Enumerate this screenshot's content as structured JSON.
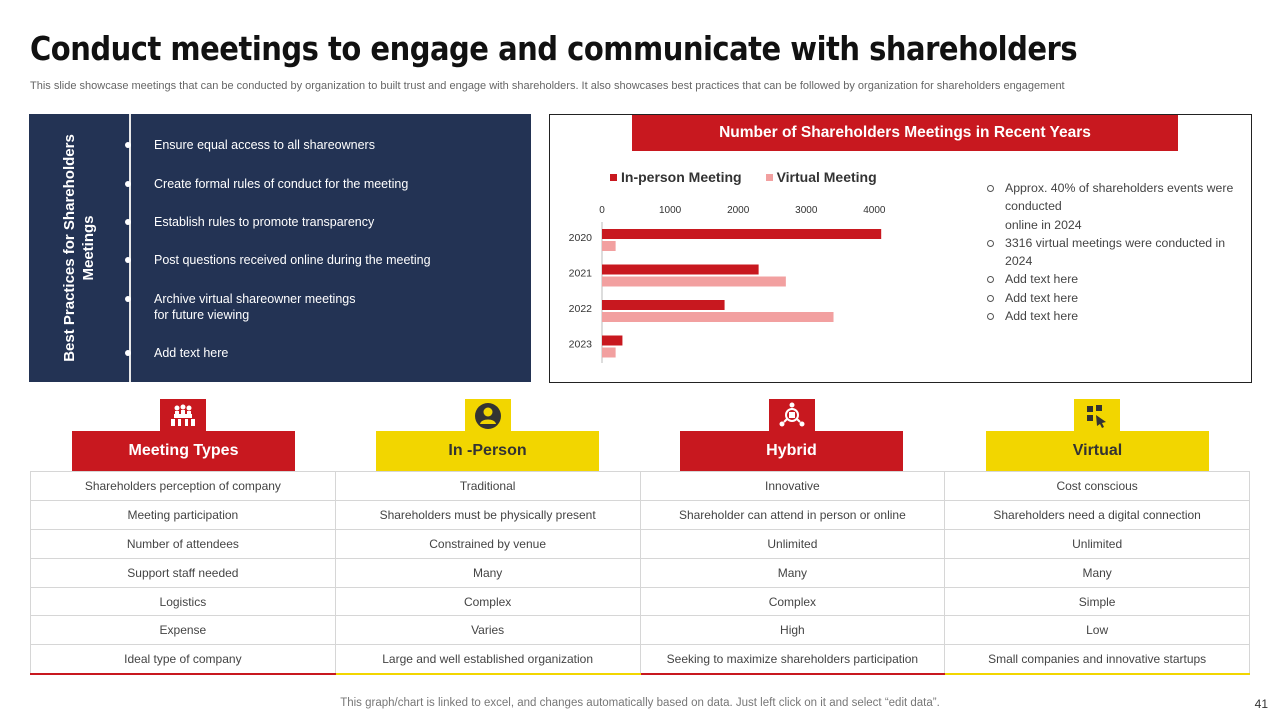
{
  "title": "Conduct meetings to engage and communicate with shareholders",
  "subtitle": "This slide showcase meetings that can be conducted by organization to built trust and engage with shareholders. It also showcases best practices that can be followed by organization for shareholders engagement",
  "best_practices": {
    "heading": "Best Practices for Shareholders Meetings",
    "items": [
      "Ensure equal access to all shareowners",
      "Create formal rules of conduct for the meeting",
      "Establish rules to promote transparency",
      "Post questions received  online during the meeting",
      "Archive virtual shareowner  meetings\nfor future viewing",
      "Add text here"
    ]
  },
  "chart_data": {
    "type": "bar",
    "orientation": "horizontal",
    "title": "Number of Shareholders Meetings in Recent Years",
    "categories": [
      "2020",
      "2021",
      "2022",
      "2023"
    ],
    "series": [
      {
        "name": "In-person Meeting",
        "color": "#c8181f",
        "values": [
          4100,
          2300,
          1800,
          300
        ]
      },
      {
        "name": "Virtual Meeting",
        "color": "#f2a0a0",
        "values": [
          200,
          2700,
          3400,
          200
        ]
      }
    ],
    "x_ticks": [
      "0",
      "1000",
      "2000",
      "3000",
      "4000"
    ],
    "xlim": [
      0,
      4200
    ],
    "legend_position": "top",
    "grid": false
  },
  "chart_notes": [
    "Approx. 40% of shareholders events were conducted\nonline in 2024",
    "3316 virtual meetings were conducted in 2024",
    "Add text here",
    "Add text here",
    "Add text here"
  ],
  "table": {
    "columns": [
      {
        "label": "Meeting Types",
        "color": "#c8181f",
        "text_color": "#ffffff",
        "icon": "meeting-icon"
      },
      {
        "label": "In -Person",
        "color": "#f2d600",
        "text_color": "#333333",
        "icon": "person-icon"
      },
      {
        "label": "Hybrid",
        "color": "#c8181f",
        "text_color": "#ffffff",
        "icon": "hybrid-icon"
      },
      {
        "label": "Virtual",
        "color": "#f2d600",
        "text_color": "#333333",
        "icon": "virtual-icon"
      }
    ],
    "rows": [
      [
        "Shareholders perception of company",
        "Traditional",
        "Innovative",
        "Cost conscious"
      ],
      [
        "Meeting participation",
        "Shareholders must be physically present",
        "Shareholder can attend in person or online",
        "Shareholders need a digital connection"
      ],
      [
        "Number of attendees",
        "Constrained by venue",
        "Unlimited",
        "Unlimited"
      ],
      [
        "Support staff needed",
        "Many",
        "Many",
        "Many"
      ],
      [
        "Logistics",
        "Complex",
        "Complex",
        "Simple"
      ],
      [
        "Expense",
        "Varies",
        "High",
        "Low"
      ],
      [
        "Ideal type of company",
        "Large and well established organization",
        "Seeking to maximize shareholders participation",
        "Small companies and innovative startups"
      ]
    ]
  },
  "footer": "This graph/chart is linked to excel,  and changes automatically based on data. Just left click on it and select “edit data”.",
  "page_number": "41"
}
